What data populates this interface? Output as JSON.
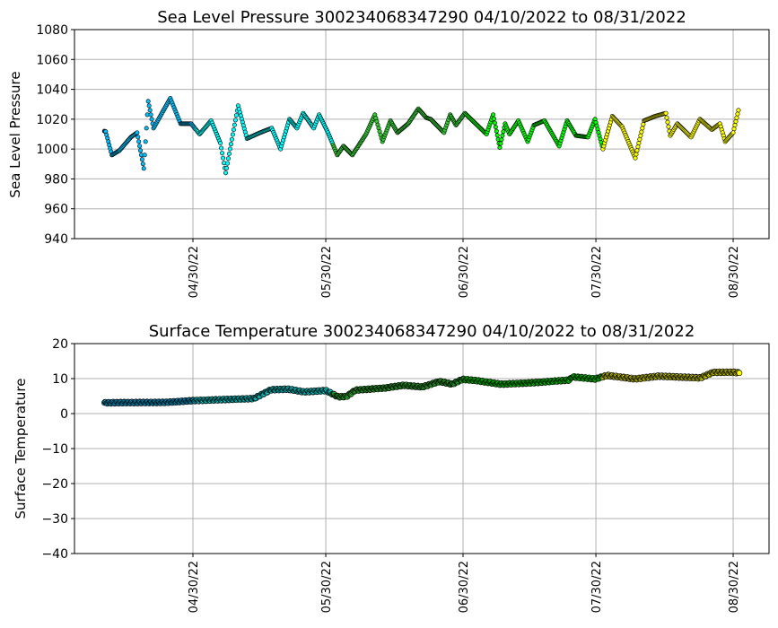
{
  "chart_data": [
    {
      "type": "scatter",
      "title": "Sea Level Pressure 300234068347290  04/10/2022 to 08/31/2022",
      "xlabel": "",
      "ylabel": "Sea Level Pressure",
      "ylim": [
        940,
        1080
      ],
      "yticks": [
        940,
        960,
        980,
        1000,
        1020,
        1040,
        1060,
        1080
      ],
      "xlim_days_since_start": [
        -6.75,
        150.1
      ],
      "start_date": "04/10/2022",
      "xticks": [
        {
          "day": 20,
          "label": "04/30/22"
        },
        {
          "day": 50,
          "label": "05/30/22"
        },
        {
          "day": 81,
          "label": "06/30/22"
        },
        {
          "day": 111,
          "label": "07/30/22"
        },
        {
          "day": 142,
          "label": "08/30/22"
        }
      ],
      "grid": true,
      "x_days": [
        0,
        0.3,
        1.7,
        3.4,
        6,
        7.4,
        8.9,
        9.9,
        11.1,
        14.9,
        17.2,
        19.6,
        21.5,
        24.1,
        26.2,
        27.4,
        30.2,
        32.2,
        35.2,
        37.8,
        39.8,
        41.8,
        43.5,
        44.9,
        47.3,
        48.5,
        50.5,
        52.6,
        54,
        56,
        59.1,
        61.1,
        62.8,
        64.6,
        66.2,
        68.6,
        70.9,
        72.7,
        73.7,
        76.7,
        78.1,
        79.4,
        81.4,
        86.3,
        87.8,
        89.3,
        90.5,
        91.5,
        93.5,
        95.6,
        97,
        99.4,
        102.7,
        104.5,
        106.5,
        109.2,
        110.8,
        112.6,
        114.7,
        116.9,
        119.9,
        121.9,
        124.4,
        126.8,
        127.8,
        129.4,
        132.5,
        134.5,
        137.2,
        139,
        140.2,
        142,
        143.2
      ],
      "y": [
        1012,
        1011.7,
        996,
        999,
        1008,
        1011,
        987,
        1032,
        1014,
        1034,
        1017,
        1017,
        1010,
        1019,
        1004,
        984,
        1029,
        1007,
        1011,
        1014,
        1000,
        1020,
        1014,
        1024,
        1014,
        1023,
        1011,
        996,
        1002,
        996,
        1010,
        1023,
        1005,
        1019,
        1011,
        1017,
        1027,
        1021,
        1020,
        1011,
        1023,
        1016,
        1024,
        1010,
        1023,
        1001,
        1017,
        1010,
        1019,
        1005,
        1016,
        1019,
        1002,
        1019,
        1009,
        1008,
        1020,
        1000,
        1022,
        1015,
        994,
        1019,
        1022,
        1024,
        1009,
        1017,
        1008,
        1020,
        1013,
        1017,
        1005,
        1011,
        1026
      ]
    },
    {
      "type": "scatter",
      "title": "Surface Temperature 300234068347290  04/10/2022 to 08/31/2022",
      "xlabel": "",
      "ylabel": "Surface Temperature",
      "ylim": [
        -40,
        20
      ],
      "yticks": [
        -40,
        -30,
        -20,
        -10,
        0,
        10,
        20
      ],
      "xlim_days_since_start": [
        -6.75,
        150.1
      ],
      "start_date": "04/10/2022",
      "xticks": [
        {
          "day": 20,
          "label": "04/30/22"
        },
        {
          "day": 50,
          "label": "05/30/22"
        },
        {
          "day": 81,
          "label": "06/30/22"
        },
        {
          "day": 111,
          "label": "07/30/22"
        },
        {
          "day": 142,
          "label": "08/30/22"
        }
      ],
      "grid": true,
      "x_days": [
        0,
        0.5,
        13.8,
        20,
        33.8,
        37.6,
        41.4,
        45.1,
        50,
        52.8,
        54.7,
        56.7,
        63.3,
        67.6,
        71.8,
        75.7,
        78.5,
        80.9,
        84.2,
        89.5,
        96.6,
        105.1,
        105.6,
        110.8,
        113.6,
        119.9,
        125.1,
        134.6,
        137.5,
        142.2,
        143.4
      ],
      "y": [
        3.1,
        3.1,
        3.2,
        3.7,
        4.3,
        6.8,
        7.0,
        6.2,
        6.6,
        4.8,
        4.9,
        6.7,
        7.3,
        8.1,
        7.6,
        9.2,
        8.4,
        9.8,
        9.4,
        8.4,
        8.8,
        9.6,
        10.5,
        9.9,
        10.9,
        9.9,
        10.7,
        10.2,
        11.8,
        11.8,
        11.6
      ]
    }
  ],
  "month_colors": [
    {
      "month": "April",
      "until_day": 20.5,
      "color": "#00bfff"
    },
    {
      "month": "May",
      "until_day": 51.5,
      "color": "#00ffff"
    },
    {
      "month": "June",
      "until_day": 81.5,
      "color": "#32cd32"
    },
    {
      "month": "July",
      "until_day": 112.5,
      "color": "#00ff00"
    },
    {
      "month": "August",
      "until_day": 999,
      "color": "#ffff00"
    }
  ]
}
